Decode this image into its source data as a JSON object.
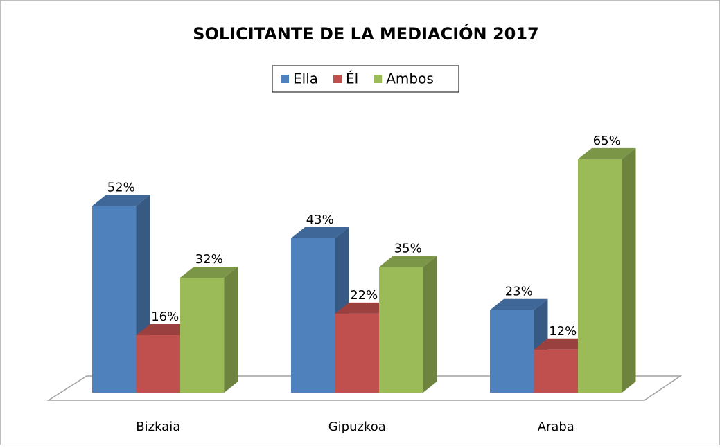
{
  "chart_data": {
    "type": "bar3d",
    "title": "SOLICITANTE DE LA MEDIACIÓN 2017",
    "categories": [
      "Bizkaia",
      "Gipuzkoa",
      "Araba"
    ],
    "series": [
      {
        "name": "Ella",
        "color": "#4f81bd",
        "values": [
          52,
          43,
          23
        ],
        "value_labels": [
          "52%",
          "43%",
          "23%"
        ]
      },
      {
        "name": "Él",
        "color": "#c0504d",
        "values": [
          16,
          22,
          12
        ],
        "value_labels": [
          "16%",
          "22%",
          "12%"
        ]
      },
      {
        "name": "Ambos",
        "color": "#9bbb59",
        "values": [
          32,
          35,
          65
        ],
        "value_labels": [
          "32%",
          "35%",
          "65%"
        ]
      }
    ],
    "ylim": [
      0,
      70
    ],
    "legend": "top"
  }
}
